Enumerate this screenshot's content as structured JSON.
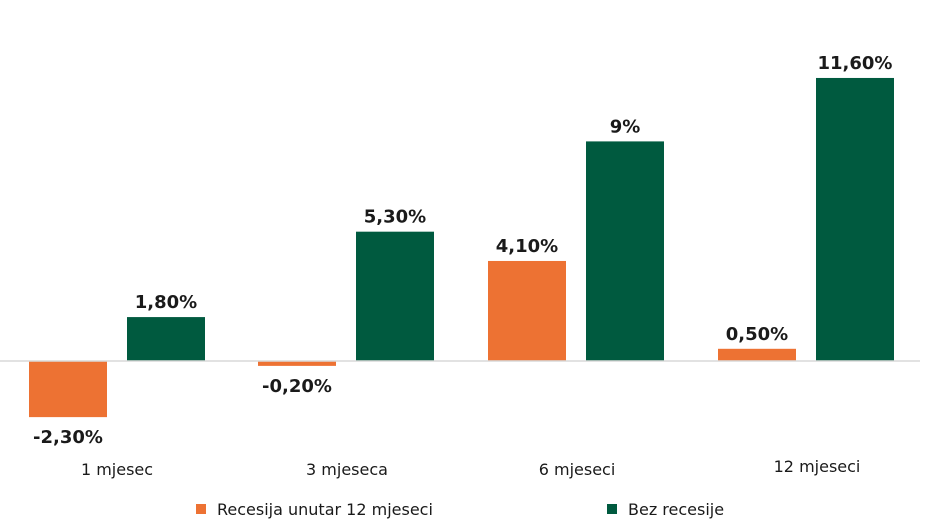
{
  "chart_data": {
    "type": "bar",
    "categories": [
      "1 mjesec",
      "3 mjeseca",
      "6 mjeseci",
      "12 mjeseci"
    ],
    "series": [
      {
        "name": "Recesija unutar 12 mjeseci",
        "values": [
          -2.3,
          -0.2,
          4.1,
          0.5
        ],
        "labels": [
          "-2,30%",
          "-0,20%",
          "4,10%",
          "0,50%"
        ],
        "color": "#ed7233"
      },
      {
        "name": "Bez recesije",
        "values": [
          1.8,
          5.3,
          9,
          11.6
        ],
        "labels": [
          "1,80%",
          "5,30%",
          "9%",
          "11,60%"
        ],
        "color": "#005a3f"
      }
    ],
    "ylim": [
      -3.2,
      13.5
    ],
    "grid": false,
    "legend_position": "bottom"
  },
  "colors": {
    "axis": "#d9d9d9",
    "text": "#1a1a1a"
  }
}
